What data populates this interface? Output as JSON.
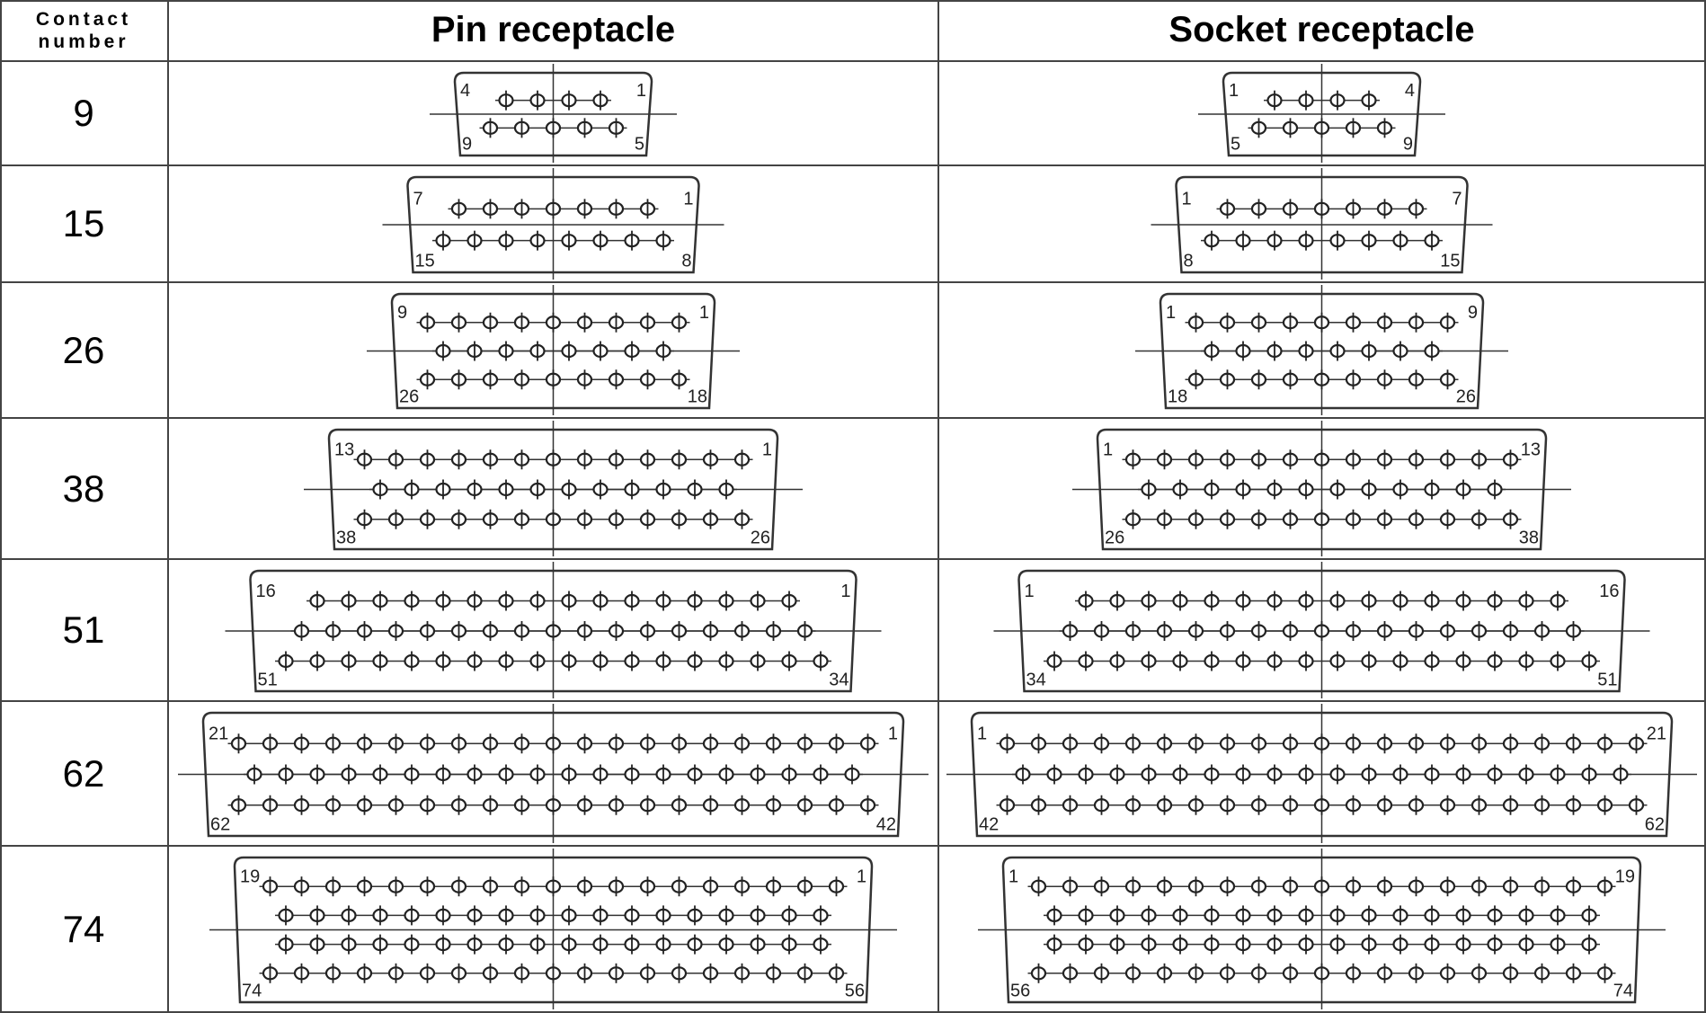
{
  "header": {
    "contact_number": "Contact number",
    "pin": "Pin receptacle",
    "socket": "Socket receptacle"
  },
  "rows": [
    {
      "contacts": 9,
      "pin": {
        "top_left": 4,
        "top_right": 1,
        "bottom_left": 9,
        "bottom_right": 5
      },
      "socket": {
        "top_left": 1,
        "top_right": 4,
        "bottom_left": 5,
        "bottom_right": 9
      }
    },
    {
      "contacts": 15,
      "pin": {
        "top_left": 7,
        "top_right": 1,
        "bottom_left": 15,
        "bottom_right": 8
      },
      "socket": {
        "top_left": 1,
        "top_right": 7,
        "bottom_left": 8,
        "bottom_right": 15
      }
    },
    {
      "contacts": 26,
      "pin": {
        "top_left": 9,
        "top_right": 1,
        "bottom_left": 26,
        "bottom_right": 18
      },
      "socket": {
        "top_left": 1,
        "top_right": 9,
        "bottom_left": 18,
        "bottom_right": 26
      }
    },
    {
      "contacts": 38,
      "pin": {
        "top_left": 13,
        "top_right": 1,
        "bottom_left": 38,
        "bottom_right": 26
      },
      "socket": {
        "top_left": 1,
        "top_right": 13,
        "bottom_left": 26,
        "bottom_right": 38
      }
    },
    {
      "contacts": 51,
      "pin": {
        "top_left": 16,
        "top_right": 1,
        "bottom_left": 51,
        "bottom_right": 34
      },
      "socket": {
        "top_left": 1,
        "top_right": 16,
        "bottom_left": 34,
        "bottom_right": 51
      }
    },
    {
      "contacts": 62,
      "pin": {
        "top_left": 21,
        "top_right": 1,
        "bottom_left": 62,
        "bottom_right": 42
      },
      "socket": {
        "top_left": 1,
        "top_right": 21,
        "bottom_left": 42,
        "bottom_right": 62
      }
    },
    {
      "contacts": 74,
      "pin": {
        "top_left": 19,
        "top_right": 1,
        "bottom_left": 74,
        "bottom_right": 56
      },
      "socket": {
        "top_left": 1,
        "top_right": 19,
        "bottom_left": 56,
        "bottom_right": 74
      }
    }
  ]
}
